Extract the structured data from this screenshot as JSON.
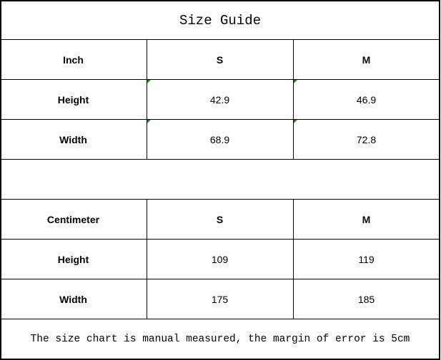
{
  "title": "Size Guide",
  "inch_table": {
    "headers": [
      "Inch",
      "S",
      "M"
    ],
    "rows": [
      {
        "label": "Height",
        "S": "42.9",
        "M": "46.9"
      },
      {
        "label": "Width",
        "S": "68.9",
        "M": "72.8"
      }
    ]
  },
  "cm_table": {
    "headers": [
      "Centimeter",
      "S",
      "M"
    ],
    "rows": [
      {
        "label": "Height",
        "S": "109",
        "M": "119"
      },
      {
        "label": "Width",
        "S": "175",
        "M": "185"
      }
    ]
  },
  "note": "The size chart is manual measured, the margin of error is 5cm",
  "colors": {
    "border": "#000000",
    "error_flag": "#1a8a1a"
  }
}
